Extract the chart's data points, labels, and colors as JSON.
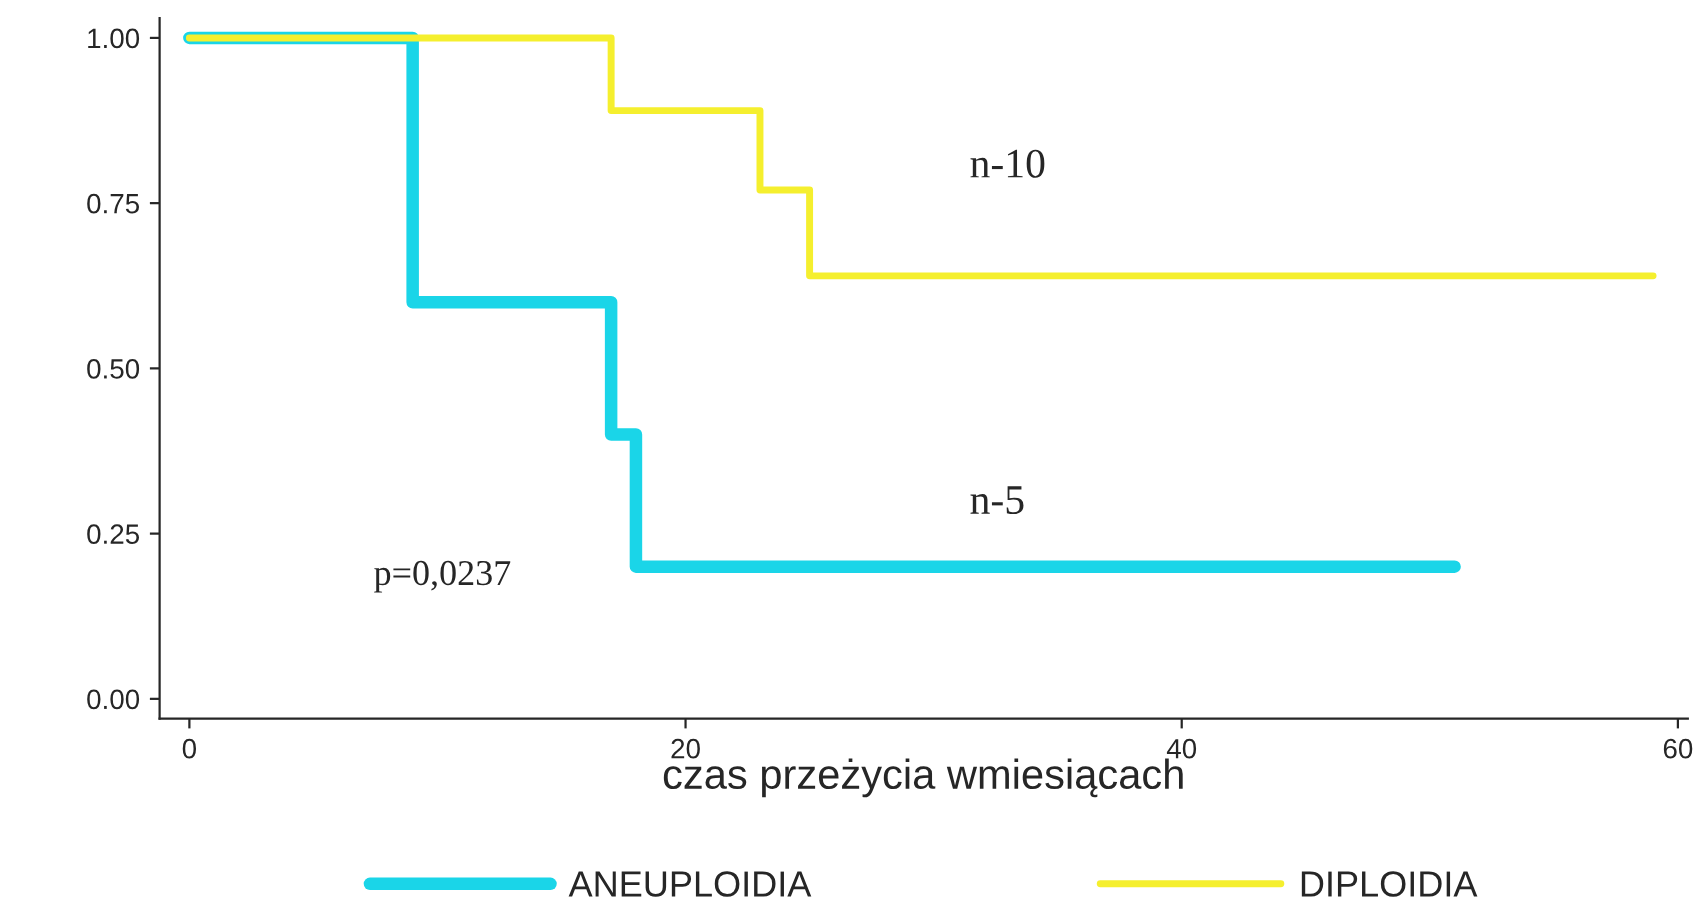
{
  "chart_data": {
    "type": "step",
    "xlabel": "czas przeżycia wmiesiącach",
    "series": [
      {
        "name": "ANEUPLOIDIA",
        "color": "#1ad5e8",
        "x": [
          0,
          9,
          17,
          18,
          51
        ],
        "values": [
          1.0,
          0.6,
          0.4,
          0.2,
          0.2
        ]
      },
      {
        "name": "DIPLOIDIA",
        "color": "#f5ef2e",
        "x": [
          0,
          17,
          23,
          25,
          59
        ],
        "values": [
          1.0,
          0.89,
          0.77,
          0.64,
          0.64
        ]
      }
    ],
    "annotations": [
      "n-10",
      "n-5",
      "p=0,0237"
    ],
    "xlim": [
      -1.2,
      60.4
    ],
    "xticks": [
      0,
      20,
      40,
      60
    ],
    "ylim": [
      -0.03,
      1.03
    ],
    "yticks": [
      {
        "value": 0,
        "label": "0.00"
      },
      {
        "value": 0.25,
        "label": "0.25"
      },
      {
        "value": 0.5,
        "label": "0.50"
      },
      {
        "value": 0.75,
        "label": "0.75"
      },
      {
        "value": 1,
        "label": "1.00"
      }
    ],
    "grid": false,
    "legend": "bottom"
  }
}
